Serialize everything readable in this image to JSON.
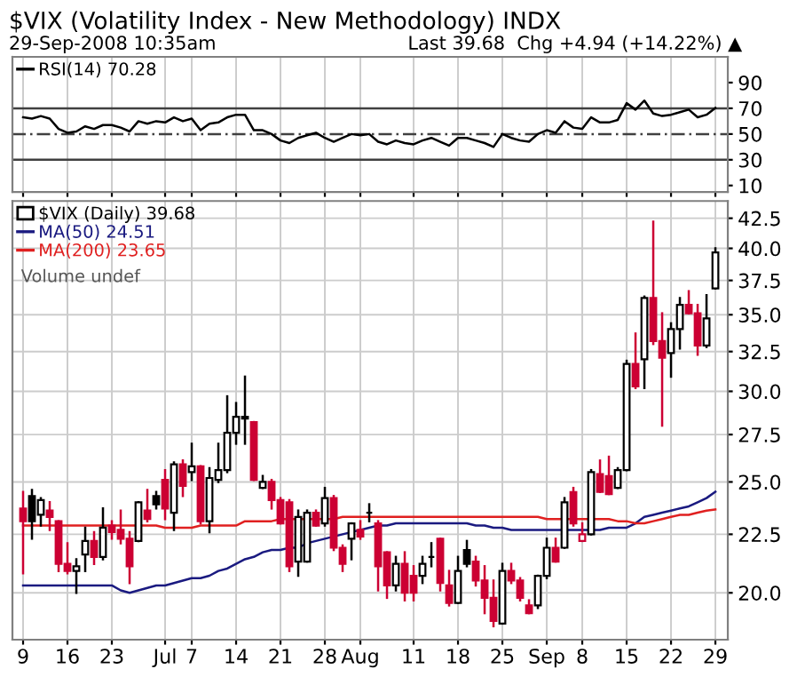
{
  "chart_data": [
    {
      "type": "line",
      "title": "$VIX (Volatility Index - New Methodology) INDX",
      "subtitle": "29-Sep-2008 10:35am",
      "annotations": [
        "Last 39.68  Chg +4.94 (+14.22%) ▲"
      ],
      "categories": [
        null,
        null,
        null,
        null,
        null,
        null,
        null,
        null,
        null,
        null,
        null,
        null,
        null,
        null,
        null,
        null,
        null,
        null,
        null,
        null,
        null,
        null,
        null,
        null,
        null,
        null,
        null,
        null,
        null,
        null,
        null,
        null,
        null,
        null,
        null,
        null,
        null,
        null,
        null,
        null,
        null,
        null,
        null,
        null,
        null,
        null,
        null,
        null,
        null,
        null,
        null,
        null,
        null,
        null,
        null,
        null,
        null,
        null,
        null,
        null,
        null,
        null,
        null,
        null,
        null,
        null,
        null,
        null,
        null,
        null,
        null,
        null,
        null,
        null,
        null,
        null,
        null,
        null,
        null
      ],
      "series": [
        {
          "name": "RSI(14) 70.28",
          "color": "#000000",
          "values": [
            63,
            62,
            64,
            62,
            54,
            51,
            52,
            56,
            54,
            57,
            57,
            55,
            52,
            60,
            58,
            60,
            59,
            63,
            60,
            62,
            53,
            58,
            59,
            63,
            65,
            65,
            53,
            53,
            50,
            45,
            43,
            47,
            49,
            51,
            47,
            44,
            47,
            50,
            49,
            50,
            44,
            42,
            45,
            43,
            42,
            45,
            47,
            44,
            41,
            47,
            47,
            45,
            43,
            40,
            50,
            47,
            45,
            44,
            50,
            53,
            51,
            60,
            55,
            54,
            63,
            59,
            59,
            61,
            74,
            69,
            76,
            66,
            64,
            65,
            67,
            69,
            63,
            65,
            70.28
          ]
        }
      ],
      "ylim": [
        5,
        110
      ],
      "yticks": [
        10,
        30,
        50,
        70,
        90
      ],
      "tick_labels": "y",
      "grid": "x",
      "legend": "top left",
      "ref_lines": [
        {
          "axis": "y",
          "value": 70,
          "color": "#404040",
          "line_style": "solid"
        },
        {
          "axis": "y",
          "value": 50,
          "color": "#404040",
          "line_style": "dashed"
        },
        {
          "axis": "y",
          "value": 30,
          "color": "#404040",
          "line_style": "solid"
        }
      ]
    },
    {
      "type": "candlestick",
      "annotations": [
        "Volume undef"
      ],
      "categories": [
        "9",
        null,
        null,
        null,
        null,
        "16",
        null,
        null,
        null,
        null,
        "23",
        null,
        null,
        null,
        null,
        null,
        "Jul",
        null,
        null,
        "7",
        null,
        null,
        null,
        null,
        "14",
        null,
        null,
        null,
        null,
        "21",
        null,
        null,
        null,
        null,
        "28",
        null,
        null,
        null,
        "Aug",
        null,
        null,
        null,
        null,
        null,
        "11",
        null,
        null,
        null,
        null,
        "18",
        null,
        null,
        null,
        null,
        "25",
        null,
        null,
        null,
        null,
        "Sep",
        null,
        null,
        null,
        "8",
        null,
        null,
        null,
        null,
        "15",
        null,
        null,
        null,
        null,
        "22",
        null,
        null,
        null,
        null,
        "29"
      ],
      "series": [
        {
          "type": "candlestick",
          "name": "$VIX (Daily) 39.68",
          "ohlc": [
            [
              23.7,
              24.5,
              20.8,
              23.1
            ],
            [
              24.3,
              24.6,
              22.3,
              23.1
            ],
            [
              23.4,
              24.2,
              22.9,
              24.1
            ],
            [
              23.6,
              24.0,
              22.7,
              23.3
            ],
            [
              23.1,
              23.1,
              20.9,
              21.2
            ],
            [
              21.2,
              22.1,
              20.8,
              20.9
            ],
            [
              20.9,
              21.4,
              20.0,
              21.1
            ],
            [
              21.6,
              22.8,
              20.9,
              22.2
            ],
            [
              22.2,
              22.6,
              21.2,
              21.5
            ],
            [
              21.5,
              23.7,
              21.4,
              22.8
            ],
            [
              22.9,
              23.1,
              22.3,
              22.6
            ],
            [
              22.7,
              23.6,
              22.1,
              22.3
            ],
            [
              22.3,
              22.6,
              20.4,
              21.1
            ],
            [
              22.2,
              24.0,
              22.2,
              24.0
            ],
            [
              23.6,
              24.6,
              23.1,
              23.2
            ],
            [
              24.3,
              24.5,
              23.7,
              23.9
            ],
            [
              25.1,
              25.6,
              23.2,
              23.7
            ],
            [
              23.5,
              26.0,
              22.7,
              25.9
            ],
            [
              25.9,
              26.1,
              24.3,
              24.8
            ],
            [
              25.5,
              27.0,
              25.1,
              25.8
            ],
            [
              25.8,
              25.8,
              23.0,
              23.1
            ],
            [
              23.1,
              25.7,
              22.6,
              25.2
            ],
            [
              25.1,
              27.0,
              25.0,
              25.6
            ],
            [
              25.6,
              29.7,
              25.5,
              27.6
            ],
            [
              27.6,
              29.3,
              27.0,
              28.5
            ],
            [
              28.5,
              30.9,
              27.0,
              28.4
            ],
            [
              28.2,
              28.2,
              25.1,
              25.1
            ],
            [
              24.7,
              25.3,
              24.7,
              25.0
            ],
            [
              25.0,
              25.1,
              23.7,
              24.1
            ],
            [
              24.1,
              24.2,
              23.0,
              23.0
            ],
            [
              24.0,
              24.1,
              20.9,
              21.1
            ],
            [
              21.3,
              23.6,
              20.7,
              23.3
            ],
            [
              21.3,
              23.6,
              21.3,
              23.5
            ],
            [
              23.5,
              23.6,
              22.9,
              22.9
            ],
            [
              23.0,
              24.7,
              22.9,
              24.2
            ],
            [
              24.2,
              24.3,
              21.8,
              21.9
            ],
            [
              21.9,
              22.0,
              20.9,
              21.2
            ],
            [
              22.3,
              23.0,
              21.4,
              23.0
            ],
            [
              22.7,
              23.1,
              22.3,
              22.4
            ],
            [
              23.5,
              23.9,
              23.1,
              23.5
            ],
            [
              23.0,
              23.1,
              20.1,
              21.1
            ],
            [
              21.7,
              21.7,
              19.8,
              20.3
            ],
            [
              20.3,
              21.5,
              20.1,
              21.2
            ],
            [
              21.2,
              21.7,
              19.7,
              20.0
            ],
            [
              20.7,
              21.1,
              19.7,
              20.0
            ],
            [
              20.7,
              21.5,
              20.4,
              21.2
            ],
            [
              21.5,
              22.1,
              21.1,
              21.5
            ],
            [
              22.3,
              22.3,
              20.1,
              20.4
            ],
            [
              20.3,
              20.9,
              19.5,
              19.6
            ],
            [
              19.6,
              21.5,
              19.6,
              20.9
            ],
            [
              21.8,
              22.2,
              21.1,
              21.2
            ],
            [
              21.3,
              21.5,
              20.3,
              20.5
            ],
            [
              20.5,
              21.1,
              19.2,
              19.8
            ],
            [
              19.8,
              20.5,
              18.7,
              18.9
            ],
            [
              18.8,
              21.2,
              18.8,
              20.9
            ],
            [
              20.9,
              21.2,
              20.4,
              20.5
            ],
            [
              20.5,
              20.6,
              19.7,
              19.8
            ],
            [
              19.5,
              19.7,
              19.2,
              19.2
            ],
            [
              19.5,
              20.7,
              19.4,
              20.7
            ],
            [
              20.7,
              22.3,
              20.6,
              21.9
            ],
            [
              21.9,
              22.3,
              21.3,
              21.3
            ],
            [
              21.9,
              24.2,
              21.9,
              24.0
            ],
            [
              24.5,
              24.7,
              22.9,
              23.0
            ],
            [
              22.2,
              23.0,
              22.2,
              22.5
            ],
            [
              22.5,
              25.6,
              22.5,
              25.5
            ],
            [
              25.4,
              26.1,
              24.5,
              24.5
            ],
            [
              25.3,
              26.3,
              24.4,
              24.4
            ],
            [
              24.7,
              25.7,
              24.7,
              25.6
            ],
            [
              25.6,
              31.9,
              25.6,
              31.7
            ],
            [
              31.7,
              33.7,
              30.2,
              30.3
            ],
            [
              32.0,
              36.3,
              30.2,
              36.2
            ],
            [
              36.2,
              42.2,
              33.0,
              33.2
            ],
            [
              33.2,
              35.1,
              28.0,
              32.1
            ],
            [
              32.4,
              34.4,
              30.9,
              34.0
            ],
            [
              34.0,
              36.2,
              32.7,
              35.7
            ],
            [
              35.7,
              36.7,
              35.1,
              35.1
            ],
            [
              35.1,
              35.7,
              32.3,
              32.9
            ],
            [
              32.9,
              36.4,
              32.8,
              34.74
            ],
            [
              36.9,
              40.0,
              36.9,
              39.68
            ]
          ],
          "colors": [
            "#cc0033",
            "#000000",
            "#000000",
            "#cc0033",
            "#cc0033",
            "#cc0033",
            "#000000",
            "#000000",
            "#cc0033",
            "#000000",
            "#cc0033",
            "#cc0033",
            "#cc0033",
            "#000000",
            "#cc0033",
            "#000000",
            "#cc0033",
            "#000000",
            "#cc0033",
            "#000000",
            "#cc0033",
            "#000000",
            "#000000",
            "#000000",
            "#000000",
            "#000000",
            "#cc0033",
            "#000000",
            "#cc0033",
            "#cc0033",
            "#cc0033",
            "#000000",
            "#000000",
            "#cc0033",
            "#000000",
            "#cc0033",
            "#cc0033",
            "#000000",
            "#cc0033",
            "#000000",
            "#cc0033",
            "#cc0033",
            "#000000",
            "#cc0033",
            "#cc0033",
            "#000000",
            "#000000",
            "#cc0033",
            "#cc0033",
            "#000000",
            "#000000",
            "#cc0033",
            "#cc0033",
            "#cc0033",
            "#000000",
            "#cc0033",
            "#cc0033",
            "#cc0033",
            "#000000",
            "#000000",
            "#cc0033",
            "#000000",
            "#cc0033",
            "#cc0033",
            "#000000",
            "#cc0033",
            "#cc0033",
            "#000000",
            "#000000",
            "#cc0033",
            "#000000",
            "#cc0033",
            "#cc0033",
            "#000000",
            "#000000",
            "#cc0033",
            "#cc0033",
            "#000000",
            "#000000"
          ]
        },
        {
          "type": "line",
          "name": "MA(50) 24.51",
          "color": "#1a1a80",
          "values": [
            20.3,
            20.3,
            20.3,
            20.3,
            20.3,
            20.3,
            20.3,
            20.3,
            20.3,
            20.3,
            20.3,
            20.1,
            20.0,
            20.1,
            20.2,
            20.3,
            20.3,
            20.4,
            20.5,
            20.6,
            20.6,
            20.7,
            20.9,
            21.0,
            21.2,
            21.4,
            21.5,
            21.7,
            21.8,
            21.8,
            21.9,
            21.9,
            22.1,
            22.2,
            22.3,
            22.4,
            22.5,
            22.6,
            22.7,
            22.8,
            22.9,
            22.9,
            23.0,
            23.0,
            23.0,
            23.0,
            23.0,
            23.0,
            23.0,
            23.0,
            23.0,
            22.9,
            22.9,
            22.8,
            22.8,
            22.7,
            22.7,
            22.7,
            22.7,
            22.7,
            22.7,
            22.7,
            22.7,
            22.7,
            22.7,
            22.7,
            22.8,
            22.8,
            22.8,
            23.0,
            23.3,
            23.4,
            23.5,
            23.6,
            23.7,
            23.8,
            24.0,
            24.2,
            24.51
          ]
        },
        {
          "type": "line",
          "name": "MA(200) 23.65",
          "color": "#e02020",
          "values": [
            22.9,
            22.9,
            22.9,
            22.9,
            22.9,
            22.9,
            22.9,
            22.9,
            22.9,
            22.9,
            22.9,
            22.9,
            22.9,
            22.9,
            22.9,
            22.9,
            22.8,
            22.8,
            22.8,
            22.8,
            22.9,
            22.9,
            22.9,
            22.9,
            22.9,
            23.1,
            23.1,
            23.1,
            23.1,
            23.2,
            23.2,
            23.2,
            23.2,
            23.2,
            23.2,
            23.2,
            23.3,
            23.3,
            23.3,
            23.3,
            23.3,
            23.3,
            23.3,
            23.3,
            23.3,
            23.3,
            23.3,
            23.3,
            23.3,
            23.3,
            23.3,
            23.3,
            23.3,
            23.3,
            23.3,
            23.3,
            23.3,
            23.3,
            23.3,
            23.2,
            23.2,
            23.2,
            23.2,
            23.2,
            23.2,
            23.2,
            23.2,
            23.1,
            23.1,
            23.0,
            23.0,
            23.1,
            23.2,
            23.3,
            23.4,
            23.4,
            23.5,
            23.6,
            23.65
          ]
        }
      ],
      "log": true,
      "ylim": [
        18.2,
        44.0
      ],
      "yticks": [
        {
          "value": 20,
          "label": "20.0"
        },
        {
          "value": 22.5,
          "label": "22.5"
        },
        {
          "value": 25,
          "label": "25.0"
        },
        {
          "value": 27.5,
          "label": "27.5"
        },
        {
          "value": 30,
          "label": "30.0"
        },
        {
          "value": 32.5,
          "label": "32.5"
        },
        {
          "value": 35,
          "label": "35.0"
        },
        {
          "value": 37.5,
          "label": "37.5"
        },
        {
          "value": 40,
          "label": "40.0"
        },
        {
          "value": 42.5,
          "label": "42.5"
        }
      ],
      "grid": true,
      "legend": "top left"
    }
  ]
}
